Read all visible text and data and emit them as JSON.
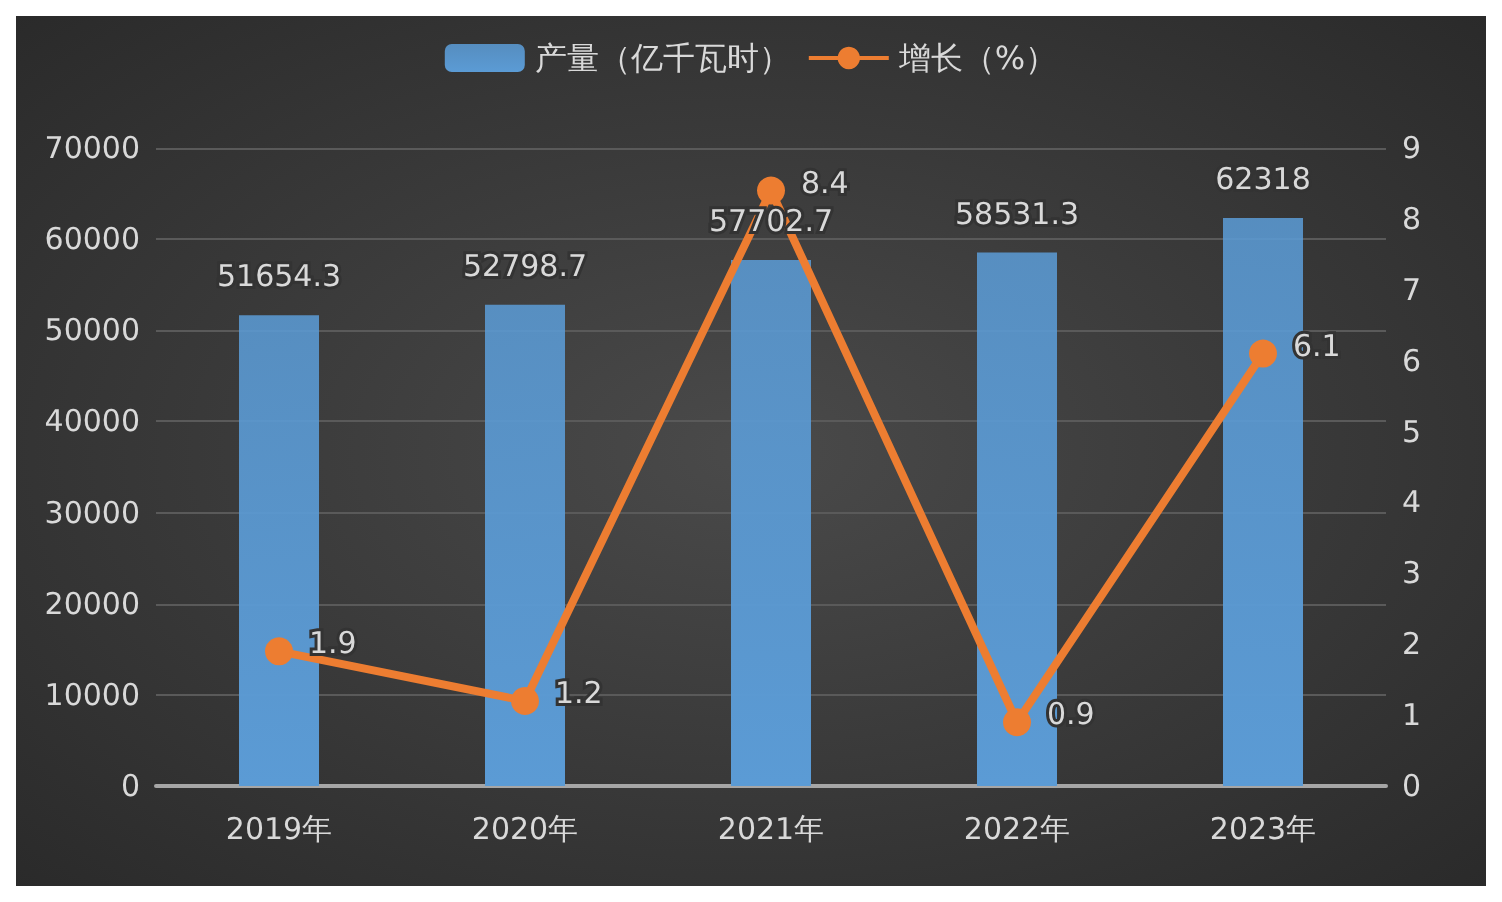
{
  "chart_data": {
    "type": "bar",
    "categories": [
      "2019年",
      "2020年",
      "2021年",
      "2022年",
      "2023年"
    ],
    "series": [
      {
        "name": "产量（亿千瓦时）",
        "type": "bar",
        "color": "#5b9bd5",
        "values": [
          51654.3,
          52798.7,
          57702.7,
          58531.3,
          62318
        ]
      },
      {
        "name": "增长（%）",
        "type": "line",
        "axis": "y2",
        "color": "#ed7d31",
        "values": [
          1.9,
          1.2,
          8.4,
          0.9,
          6.1
        ]
      }
    ],
    "ylim": [
      0,
      70000
    ],
    "yticks": [
      0,
      10000,
      20000,
      30000,
      40000,
      50000,
      60000,
      70000
    ],
    "y2lim": [
      0,
      9
    ],
    "y2ticks": [
      0,
      1,
      2,
      3,
      4,
      5,
      6,
      7,
      8,
      9
    ],
    "data_labels": true,
    "grid": "y",
    "legend": "top",
    "marker": "circle",
    "line_style": "solid"
  }
}
